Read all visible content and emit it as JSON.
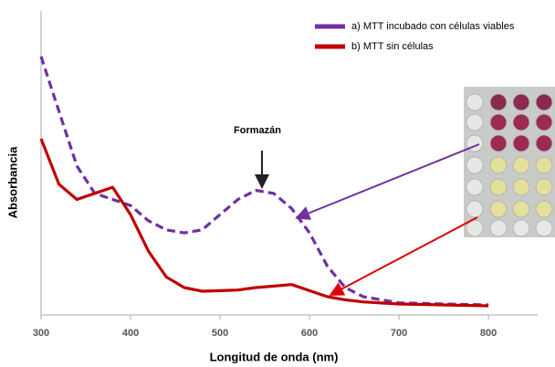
{
  "chart_data": {
    "type": "line",
    "x_label": "Longitud de onda (nm)",
    "y_label": "Absorbancia",
    "annotation": "Formazán",
    "x": [
      300,
      320,
      340,
      360,
      380,
      400,
      420,
      440,
      460,
      480,
      500,
      520,
      540,
      560,
      580,
      600,
      620,
      640,
      660,
      700,
      750,
      800
    ],
    "series": [
      {
        "name": "a) MTT incubado con células viables",
        "color": "#7030a0",
        "dashed": true,
        "values": [
          0.85,
          0.67,
          0.49,
          0.4,
          0.38,
          0.36,
          0.31,
          0.28,
          0.27,
          0.28,
          0.33,
          0.38,
          0.41,
          0.4,
          0.35,
          0.27,
          0.16,
          0.09,
          0.06,
          0.04,
          0.036,
          0.033
        ]
      },
      {
        "name": "b) MTT sin células",
        "color": "#c00000",
        "dashed": false,
        "values": [
          0.58,
          0.43,
          0.38,
          0.4,
          0.42,
          0.33,
          0.21,
          0.125,
          0.09,
          0.078,
          0.08,
          0.082,
          0.09,
          0.095,
          0.1,
          0.08,
          0.06,
          0.05,
          0.043,
          0.036,
          0.033,
          0.03
        ]
      }
    ],
    "xlim": [
      300,
      855
    ],
    "xticks": [
      300,
      400,
      500,
      600,
      700,
      800
    ],
    "ylim": [
      0,
      1
    ]
  }
}
